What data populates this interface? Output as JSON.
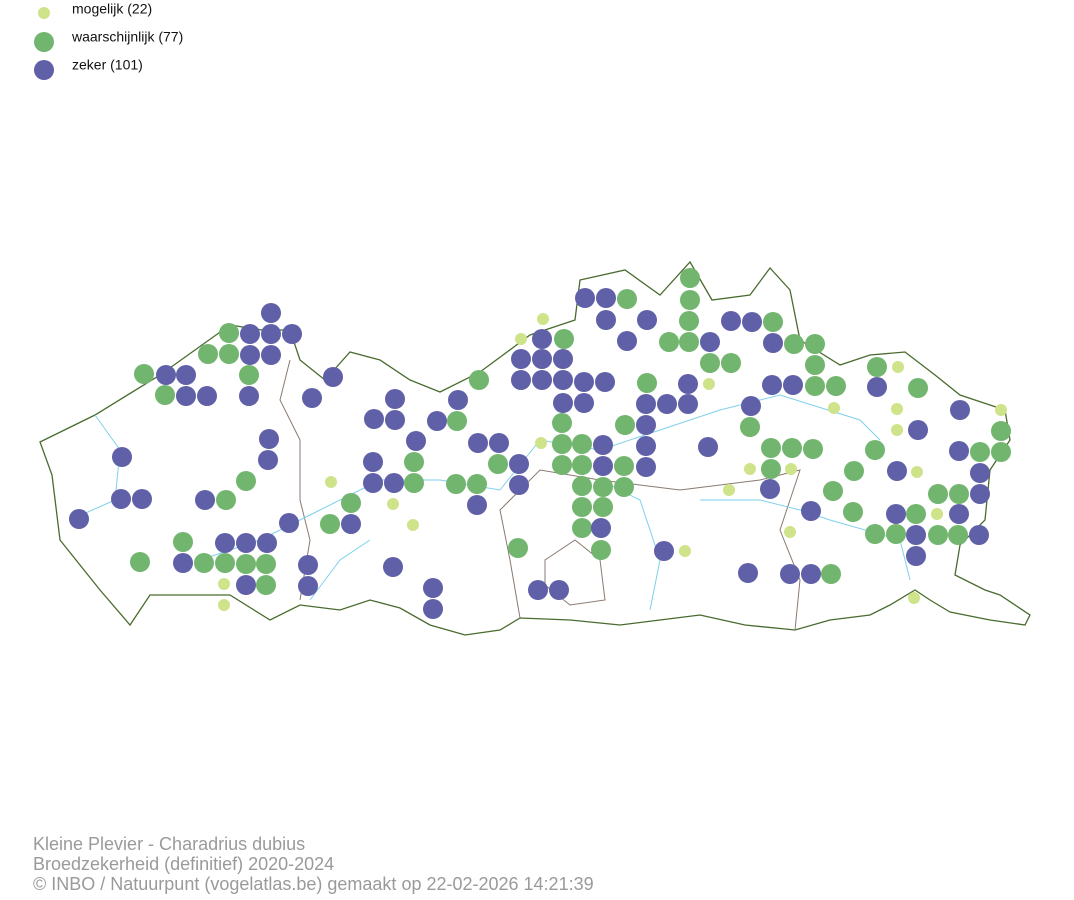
{
  "legend": {
    "items": [
      {
        "label": "mogelijk (22)"
      },
      {
        "label": "waarschijnlijk (77)"
      },
      {
        "label": "zeker (101)"
      }
    ]
  },
  "footer": {
    "lines": [
      "Kleine Plevier - Charadrius dubius",
      "Broedzekerheid (definitief) 2020-2024",
      "© INBO / Natuurpunt (vogelatlas.be) gemaakt op 22-02-2026 14:21:39"
    ]
  }
}
